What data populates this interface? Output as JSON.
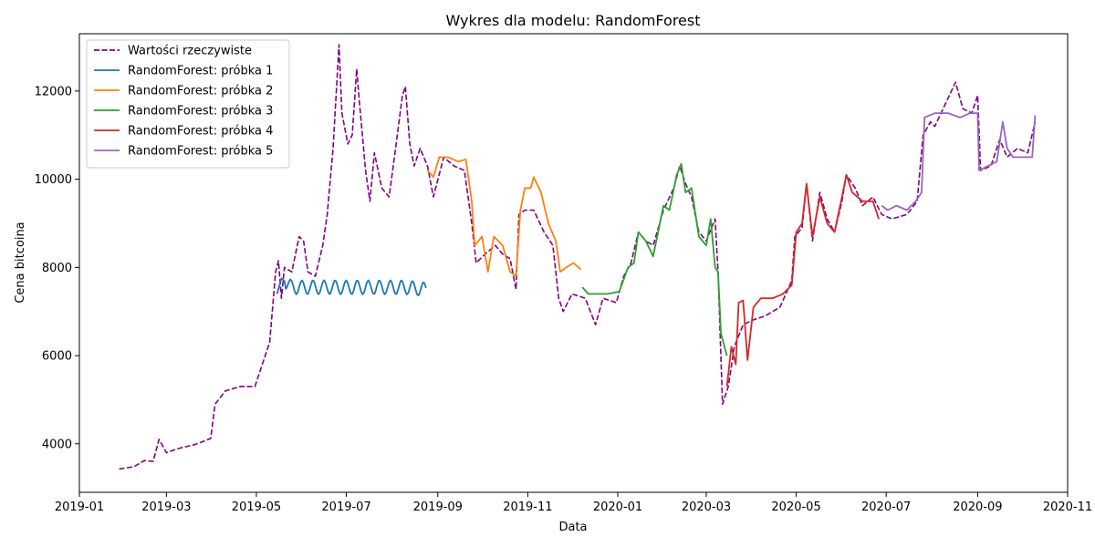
{
  "chart_data": {
    "type": "line",
    "title": "Wykres dla modelu: RandomForest",
    "xlabel": "Data",
    "ylabel": "Cena bitcoina",
    "xlim": [
      "2019-01-01",
      "2020-11-01"
    ],
    "ylim": [
      2900,
      13300
    ],
    "x_ticks": [
      "2019-01",
      "2019-03",
      "2019-05",
      "2019-07",
      "2019-09",
      "2019-11",
      "2020-01",
      "2020-03",
      "2020-05",
      "2020-07",
      "2020-09",
      "2020-11"
    ],
    "y_ticks": [
      4000,
      6000,
      8000,
      10000,
      12000
    ],
    "grid": false,
    "legend_position": "top-left",
    "series": [
      {
        "name": "Wartości rzeczywiste",
        "color": "#800080",
        "style": "dashed",
        "points": [
          [
            "2019-01-28",
            3430
          ],
          [
            "2019-02-07",
            3480
          ],
          [
            "2019-02-14",
            3620
          ],
          [
            "2019-02-20",
            3600
          ],
          [
            "2019-02-24",
            4100
          ],
          [
            "2019-03-01",
            3800
          ],
          [
            "2019-03-10",
            3900
          ],
          [
            "2019-03-20",
            3980
          ],
          [
            "2019-03-31",
            4120
          ],
          [
            "2019-04-03",
            4900
          ],
          [
            "2019-04-10",
            5200
          ],
          [
            "2019-04-20",
            5300
          ],
          [
            "2019-04-30",
            5300
          ],
          [
            "2019-05-05",
            5800
          ],
          [
            "2019-05-10",
            6300
          ],
          [
            "2019-05-12",
            7100
          ],
          [
            "2019-05-14",
            7900
          ],
          [
            "2019-05-16",
            8150
          ],
          [
            "2019-05-18",
            7300
          ],
          [
            "2019-05-20",
            8000
          ],
          [
            "2019-05-25",
            7900
          ],
          [
            "2019-05-30",
            8700
          ],
          [
            "2019-06-02",
            8600
          ],
          [
            "2019-06-05",
            7900
          ],
          [
            "2019-06-10",
            7800
          ],
          [
            "2019-06-15",
            8500
          ],
          [
            "2019-06-18",
            9200
          ],
          [
            "2019-06-22",
            10700
          ],
          [
            "2019-06-26",
            13050
          ],
          [
            "2019-06-28",
            11500
          ],
          [
            "2019-07-02",
            10800
          ],
          [
            "2019-07-05",
            11000
          ],
          [
            "2019-07-08",
            12500
          ],
          [
            "2019-07-10",
            11700
          ],
          [
            "2019-07-14",
            10200
          ],
          [
            "2019-07-17",
            9500
          ],
          [
            "2019-07-20",
            10600
          ],
          [
            "2019-07-25",
            9800
          ],
          [
            "2019-07-30",
            9600
          ],
          [
            "2019-08-03",
            10600
          ],
          [
            "2019-08-08",
            11900
          ],
          [
            "2019-08-10",
            12100
          ],
          [
            "2019-08-13",
            10800
          ],
          [
            "2019-08-16",
            10300
          ],
          [
            "2019-08-20",
            10700
          ],
          [
            "2019-08-25",
            10300
          ],
          [
            "2019-08-29",
            9600
          ],
          [
            "2019-09-05",
            10500
          ],
          [
            "2019-09-12",
            10300
          ],
          [
            "2019-09-19",
            10200
          ],
          [
            "2019-09-24",
            9000
          ],
          [
            "2019-09-27",
            8100
          ],
          [
            "2019-10-03",
            8300
          ],
          [
            "2019-10-10",
            8500
          ],
          [
            "2019-10-15",
            8300
          ],
          [
            "2019-10-20",
            8200
          ],
          [
            "2019-10-24",
            7500
          ],
          [
            "2019-10-26",
            9200
          ],
          [
            "2019-10-30",
            9300
          ],
          [
            "2019-11-05",
            9300
          ],
          [
            "2019-11-12",
            8800
          ],
          [
            "2019-11-18",
            8500
          ],
          [
            "2019-11-22",
            7300
          ],
          [
            "2019-11-25",
            7000
          ],
          [
            "2019-12-01",
            7400
          ],
          [
            "2019-12-10",
            7300
          ],
          [
            "2019-12-17",
            6700
          ],
          [
            "2019-12-22",
            7300
          ],
          [
            "2019-12-31",
            7200
          ],
          [
            "2020-01-05",
            7800
          ],
          [
            "2020-01-10",
            8100
          ],
          [
            "2020-01-15",
            8800
          ],
          [
            "2020-01-20",
            8600
          ],
          [
            "2020-01-25",
            8500
          ],
          [
            "2020-02-01",
            9300
          ],
          [
            "2020-02-08",
            9800
          ],
          [
            "2020-02-12",
            10300
          ],
          [
            "2020-02-16",
            9900
          ],
          [
            "2020-02-20",
            9600
          ],
          [
            "2020-02-25",
            8800
          ],
          [
            "2020-03-01",
            8600
          ],
          [
            "2020-03-07",
            9100
          ],
          [
            "2020-03-09",
            7900
          ],
          [
            "2020-03-12",
            4900
          ],
          [
            "2020-03-16",
            5300
          ],
          [
            "2020-03-20",
            6200
          ],
          [
            "2020-03-26",
            6700
          ],
          [
            "2020-04-01",
            6800
          ],
          [
            "2020-04-10",
            6900
          ],
          [
            "2020-04-20",
            7100
          ],
          [
            "2020-04-28",
            7700
          ],
          [
            "2020-04-30",
            8700
          ],
          [
            "2020-05-05",
            8900
          ],
          [
            "2020-05-08",
            9900
          ],
          [
            "2020-05-12",
            8600
          ],
          [
            "2020-05-17",
            9700
          ],
          [
            "2020-05-22",
            9100
          ],
          [
            "2020-05-27",
            8800
          ],
          [
            "2020-06-01",
            9500
          ],
          [
            "2020-06-04",
            10100
          ],
          [
            "2020-06-10",
            9800
          ],
          [
            "2020-06-15",
            9400
          ],
          [
            "2020-06-22",
            9600
          ],
          [
            "2020-06-28",
            9200
          ],
          [
            "2020-07-05",
            9100
          ],
          [
            "2020-07-15",
            9200
          ],
          [
            "2020-07-22",
            9500
          ],
          [
            "2020-07-26",
            11000
          ],
          [
            "2020-07-31",
            11300
          ],
          [
            "2020-08-03",
            11200
          ],
          [
            "2020-08-10",
            11700
          ],
          [
            "2020-08-17",
            12200
          ],
          [
            "2020-08-22",
            11600
          ],
          [
            "2020-08-28",
            11500
          ],
          [
            "2020-09-01",
            11900
          ],
          [
            "2020-09-03",
            10200
          ],
          [
            "2020-09-10",
            10300
          ],
          [
            "2020-09-16",
            10900
          ],
          [
            "2020-09-21",
            10500
          ],
          [
            "2020-09-28",
            10700
          ],
          [
            "2020-10-05",
            10600
          ],
          [
            "2020-10-10",
            11300
          ]
        ]
      },
      {
        "name": "RandomForest: próbka 1",
        "color": "#1f77b4",
        "style": "solid",
        "oscillate": true,
        "points": [
          [
            "2019-05-15",
            7400
          ],
          [
            "2019-05-18",
            7750
          ],
          [
            "2019-05-25",
            7550
          ],
          [
            "2019-06-10",
            7550
          ],
          [
            "2019-07-01",
            7550
          ],
          [
            "2019-07-20",
            7550
          ],
          [
            "2019-08-10",
            7550
          ],
          [
            "2019-08-24",
            7500
          ]
        ]
      },
      {
        "name": "RandomForest: próbka 2",
        "color": "#ff7f0e",
        "style": "solid",
        "points": [
          [
            "2019-08-25",
            10200
          ],
          [
            "2019-08-29",
            10050
          ],
          [
            "2019-09-02",
            10500
          ],
          [
            "2019-09-08",
            10500
          ],
          [
            "2019-09-15",
            10400
          ],
          [
            "2019-09-20",
            10450
          ],
          [
            "2019-09-24",
            9500
          ],
          [
            "2019-09-26",
            8500
          ],
          [
            "2019-10-01",
            8700
          ],
          [
            "2019-10-05",
            7900
          ],
          [
            "2019-10-09",
            8700
          ],
          [
            "2019-10-15",
            8500
          ],
          [
            "2019-10-20",
            7900
          ],
          [
            "2019-10-24",
            7800
          ],
          [
            "2019-10-27",
            9300
          ],
          [
            "2019-10-30",
            9800
          ],
          [
            "2019-11-03",
            9800
          ],
          [
            "2019-11-05",
            10050
          ],
          [
            "2019-11-10",
            9700
          ],
          [
            "2019-11-15",
            9000
          ],
          [
            "2019-11-20",
            8600
          ],
          [
            "2019-11-23",
            7900
          ],
          [
            "2019-11-27",
            8000
          ],
          [
            "2019-12-02",
            8100
          ],
          [
            "2019-12-07",
            7950
          ]
        ]
      },
      {
        "name": "RandomForest: próbka 3",
        "color": "#2ca02c",
        "style": "solid",
        "points": [
          [
            "2019-12-08",
            7550
          ],
          [
            "2019-12-12",
            7400
          ],
          [
            "2019-12-25",
            7400
          ],
          [
            "2020-01-02",
            7450
          ],
          [
            "2020-01-08",
            8000
          ],
          [
            "2020-01-12",
            8100
          ],
          [
            "2020-01-15",
            8800
          ],
          [
            "2020-01-20",
            8600
          ],
          [
            "2020-01-25",
            8250
          ],
          [
            "2020-02-01",
            9400
          ],
          [
            "2020-02-05",
            9300
          ],
          [
            "2020-02-10",
            10100
          ],
          [
            "2020-02-13",
            10350
          ],
          [
            "2020-02-16",
            9700
          ],
          [
            "2020-02-20",
            9800
          ],
          [
            "2020-02-25",
            8700
          ],
          [
            "2020-03-01",
            8500
          ],
          [
            "2020-03-04",
            9100
          ],
          [
            "2020-03-07",
            8000
          ],
          [
            "2020-03-09",
            7900
          ],
          [
            "2020-03-11",
            6500
          ],
          [
            "2020-03-15",
            6000
          ]
        ]
      },
      {
        "name": "RandomForest: próbka 4",
        "color": "#d62728",
        "style": "solid",
        "points": [
          [
            "2020-03-15",
            5300
          ],
          [
            "2020-03-18",
            6200
          ],
          [
            "2020-03-21",
            5800
          ],
          [
            "2020-03-23",
            7200
          ],
          [
            "2020-03-26",
            7250
          ],
          [
            "2020-03-29",
            5900
          ],
          [
            "2020-04-02",
            7100
          ],
          [
            "2020-04-07",
            7300
          ],
          [
            "2020-04-15",
            7300
          ],
          [
            "2020-04-22",
            7400
          ],
          [
            "2020-04-28",
            7600
          ],
          [
            "2020-05-01",
            8800
          ],
          [
            "2020-05-05",
            9000
          ],
          [
            "2020-05-08",
            9900
          ],
          [
            "2020-05-12",
            8700
          ],
          [
            "2020-05-17",
            9600
          ],
          [
            "2020-05-22",
            9000
          ],
          [
            "2020-05-27",
            8800
          ],
          [
            "2020-06-01",
            9600
          ],
          [
            "2020-06-04",
            10100
          ],
          [
            "2020-06-08",
            9700
          ],
          [
            "2020-06-15",
            9500
          ],
          [
            "2020-06-22",
            9500
          ],
          [
            "2020-06-26",
            9100
          ]
        ]
      },
      {
        "name": "RandomForest: próbka 5",
        "color": "#9467bd",
        "style": "solid",
        "points": [
          [
            "2020-06-28",
            9400
          ],
          [
            "2020-07-02",
            9300
          ],
          [
            "2020-07-08",
            9400
          ],
          [
            "2020-07-15",
            9300
          ],
          [
            "2020-07-21",
            9500
          ],
          [
            "2020-07-25",
            9700
          ],
          [
            "2020-07-27",
            11400
          ],
          [
            "2020-08-03",
            11500
          ],
          [
            "2020-08-12",
            11500
          ],
          [
            "2020-08-20",
            11400
          ],
          [
            "2020-08-27",
            11500
          ],
          [
            "2020-09-01",
            11500
          ],
          [
            "2020-09-02",
            10200
          ],
          [
            "2020-09-08",
            10300
          ],
          [
            "2020-09-14",
            10400
          ],
          [
            "2020-09-18",
            11300
          ],
          [
            "2020-09-21",
            10700
          ],
          [
            "2020-09-25",
            10500
          ],
          [
            "2020-10-01",
            10500
          ],
          [
            "2020-10-08",
            10500
          ],
          [
            "2020-10-10",
            11450
          ]
        ]
      }
    ]
  }
}
